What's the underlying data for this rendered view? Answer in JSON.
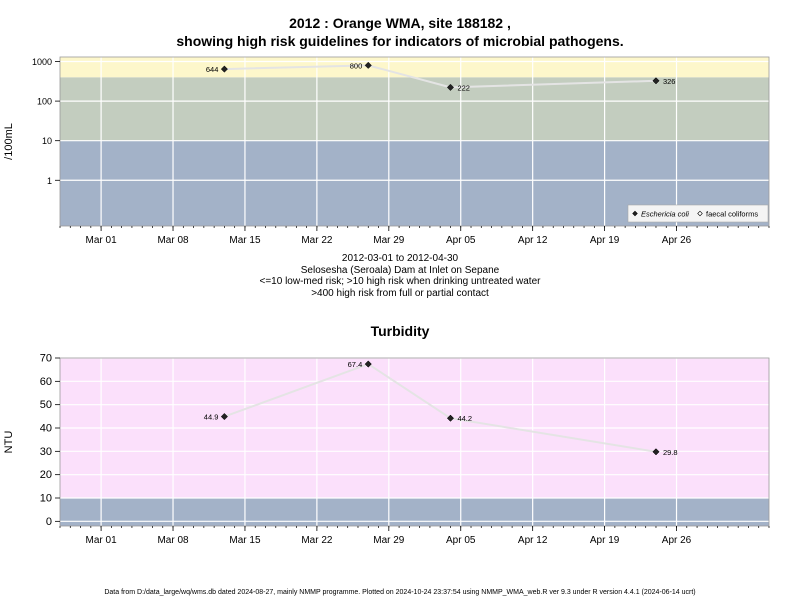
{
  "header": {
    "title_line1": "2012 : Orange WMA, site 188182 ,",
    "title_line2": "showing high risk guidelines for indicators of microbial pathogens."
  },
  "subtitle": {
    "date_range": "2012-03-01 to 2012-04-30",
    "site_name": "Selosesha (Seroala) Dam at Inlet on Sepane",
    "guideline_1": "<=10 low-med risk; >10 high risk when drinking untreated water",
    "guideline_2": ">400 high risk from full or partial contact"
  },
  "footer": {
    "text": "Data from D:/data_large/wq/wms.db dated 2024-08-27, mainly NMMP programme. Plotted on 2024-10-24 23:37:54 using NMMP_WMA_web.R ver 9.3 under R version 4.4.1 (2024-06-14 ucrt)"
  },
  "colors": {
    "band_blue": "#a3b2c8",
    "band_green": "#c3cdbf",
    "band_yellow": "#fdf7cb",
    "band_pink": "#fbe0fb",
    "series_line": "#e4e4e4",
    "grid": "#ffffff"
  },
  "chart_data": [
    {
      "type": "line",
      "scale": "log",
      "title": "",
      "ylabel": "/100mL",
      "xlabel": "",
      "xlim": [
        "2012-02-26",
        "2012-05-05"
      ],
      "ylim": [
        0.07,
        1300
      ],
      "x_ticks": [
        {
          "date": "2012-03-01",
          "label": "Mar 01"
        },
        {
          "date": "2012-03-08",
          "label": "Mar 08"
        },
        {
          "date": "2012-03-15",
          "label": "Mar 15"
        },
        {
          "date": "2012-03-22",
          "label": "Mar 22"
        },
        {
          "date": "2012-03-29",
          "label": "Mar 29"
        },
        {
          "date": "2012-04-05",
          "label": "Apr 05"
        },
        {
          "date": "2012-04-12",
          "label": "Apr 12"
        },
        {
          "date": "2012-04-19",
          "label": "Apr 19"
        },
        {
          "date": "2012-04-26",
          "label": "Apr 26"
        }
      ],
      "y_ticks": [
        {
          "value": 1,
          "label": "1"
        },
        {
          "value": 10,
          "label": "10"
        },
        {
          "value": 100,
          "label": "100"
        },
        {
          "value": 1000,
          "label": "1000"
        }
      ],
      "bands": [
        {
          "from": 0.07,
          "to": 10,
          "color": "band_blue"
        },
        {
          "from": 10,
          "to": 400,
          "color": "band_green"
        },
        {
          "from": 400,
          "to": 1300,
          "color": "band_yellow"
        }
      ],
      "series": [
        {
          "name": "Eschericia coli",
          "marker": "filled-diamond",
          "points": [
            {
              "date": "2012-03-13",
              "value": 644,
              "label": "644",
              "label_side": "left"
            },
            {
              "date": "2012-03-27",
              "value": 800,
              "label": "800",
              "label_side": "left"
            },
            {
              "date": "2012-04-04",
              "value": 222,
              "label": "222",
              "label_side": "right"
            },
            {
              "date": "2012-04-24",
              "value": 326,
              "label": "326",
              "label_side": "right"
            }
          ]
        }
      ],
      "legend": {
        "placement": "bottom-right",
        "entries": [
          {
            "label": "Eschericia coli",
            "marker": "filled-diamond",
            "italic": true
          },
          {
            "label": "faecal coliforms",
            "marker": "open-diamond",
            "italic": false
          }
        ]
      },
      "grid": true
    },
    {
      "type": "line",
      "scale": "linear",
      "title": "Turbidity",
      "ylabel": "NTU",
      "xlabel": "",
      "xlim": [
        "2012-02-26",
        "2012-05-05"
      ],
      "ylim": [
        -2,
        70
      ],
      "x_ticks": [
        {
          "date": "2012-03-01",
          "label": "Mar 01"
        },
        {
          "date": "2012-03-08",
          "label": "Mar 08"
        },
        {
          "date": "2012-03-15",
          "label": "Mar 15"
        },
        {
          "date": "2012-03-22",
          "label": "Mar 22"
        },
        {
          "date": "2012-03-29",
          "label": "Mar 29"
        },
        {
          "date": "2012-04-05",
          "label": "Apr 05"
        },
        {
          "date": "2012-04-12",
          "label": "Apr 12"
        },
        {
          "date": "2012-04-19",
          "label": "Apr 19"
        },
        {
          "date": "2012-04-26",
          "label": "Apr 26"
        }
      ],
      "y_ticks": [
        {
          "value": 0,
          "label": "0"
        },
        {
          "value": 10,
          "label": "10"
        },
        {
          "value": 20,
          "label": "20"
        },
        {
          "value": 30,
          "label": "30"
        },
        {
          "value": 40,
          "label": "40"
        },
        {
          "value": 50,
          "label": "50"
        },
        {
          "value": 60,
          "label": "60"
        },
        {
          "value": 70,
          "label": "70"
        }
      ],
      "bands": [
        {
          "from": -2,
          "to": 10,
          "color": "band_blue"
        },
        {
          "from": 10,
          "to": 70,
          "color": "band_pink"
        }
      ],
      "series": [
        {
          "name": "",
          "marker": "filled-diamond",
          "points": [
            {
              "date": "2012-03-13",
              "value": 44.9,
              "label": "44.9",
              "label_side": "left"
            },
            {
              "date": "2012-03-27",
              "value": 67.4,
              "label": "67.4",
              "label_side": "left"
            },
            {
              "date": "2012-04-04",
              "value": 44.2,
              "label": "44.2",
              "label_side": "right"
            },
            {
              "date": "2012-04-24",
              "value": 29.8,
              "label": "29.8",
              "label_side": "right"
            }
          ]
        }
      ],
      "grid": true
    }
  ]
}
